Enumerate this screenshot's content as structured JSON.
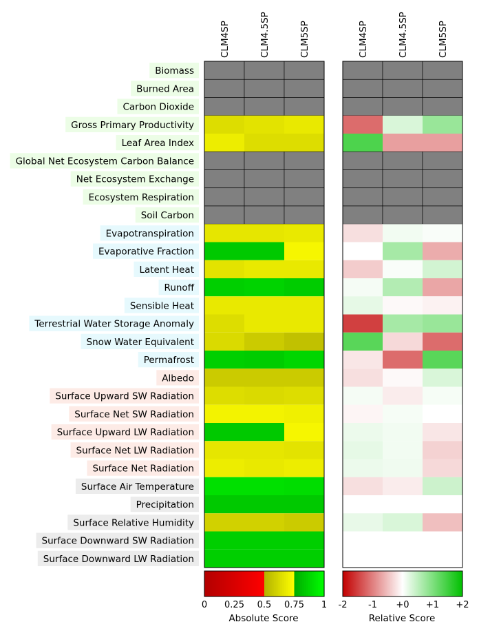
{
  "chart_data": {
    "type": "heatmap",
    "columns": [
      "CLM4SP",
      "CLM4.5SP",
      "CLM5SP"
    ],
    "rows": [
      {
        "label": "Biomass",
        "group": "ecosystem"
      },
      {
        "label": "Burned Area",
        "group": "ecosystem"
      },
      {
        "label": "Carbon Dioxide",
        "group": "ecosystem"
      },
      {
        "label": "Gross Primary Productivity",
        "group": "ecosystem"
      },
      {
        "label": "Leaf Area Index",
        "group": "ecosystem"
      },
      {
        "label": "Global Net Ecosystem Carbon Balance",
        "group": "ecosystem"
      },
      {
        "label": "Net Ecosystem Exchange",
        "group": "ecosystem"
      },
      {
        "label": "Ecosystem Respiration",
        "group": "ecosystem"
      },
      {
        "label": "Soil Carbon",
        "group": "ecosystem"
      },
      {
        "label": "Evapotranspiration",
        "group": "hydrology"
      },
      {
        "label": "Evaporative Fraction",
        "group": "hydrology"
      },
      {
        "label": "Latent Heat",
        "group": "hydrology"
      },
      {
        "label": "Runoff",
        "group": "hydrology"
      },
      {
        "label": "Sensible Heat",
        "group": "hydrology"
      },
      {
        "label": "Terrestrial Water Storage Anomaly",
        "group": "hydrology"
      },
      {
        "label": "Snow Water Equivalent",
        "group": "hydrology"
      },
      {
        "label": "Permafrost",
        "group": "hydrology"
      },
      {
        "label": "Albedo",
        "group": "radiation"
      },
      {
        "label": "Surface Upward SW Radiation",
        "group": "radiation"
      },
      {
        "label": "Surface Net SW Radiation",
        "group": "radiation"
      },
      {
        "label": "Surface Upward LW Radiation",
        "group": "radiation"
      },
      {
        "label": "Surface Net LW Radiation",
        "group": "radiation"
      },
      {
        "label": "Surface Net Radiation",
        "group": "radiation"
      },
      {
        "label": "Surface Air Temperature",
        "group": "forcing"
      },
      {
        "label": "Precipitation",
        "group": "forcing"
      },
      {
        "label": "Surface Relative Humidity",
        "group": "forcing"
      },
      {
        "label": "Surface Downward SW Radiation",
        "group": "forcing"
      },
      {
        "label": "Surface Downward LW Radiation",
        "group": "forcing"
      }
    ],
    "group_colors": {
      "ecosystem": "#ecfde6",
      "hydrology": "#e6f9fd",
      "radiation": "#fdebe6",
      "forcing": "#ececec"
    },
    "missing_color": "#808080",
    "absolute_scores": [
      [
        null,
        null,
        null
      ],
      [
        null,
        null,
        null
      ],
      [
        null,
        null,
        null
      ],
      [
        0.64,
        0.66,
        0.68
      ],
      [
        0.69,
        0.64,
        0.64
      ],
      [
        null,
        null,
        null
      ],
      [
        null,
        null,
        null
      ],
      [
        null,
        null,
        null
      ],
      [
        null,
        null,
        null
      ],
      [
        0.67,
        0.67,
        0.68
      ],
      [
        0.84,
        0.84,
        0.72
      ],
      [
        0.66,
        0.68,
        0.68
      ],
      [
        0.86,
        0.87,
        0.85
      ],
      [
        0.68,
        0.68,
        0.68
      ],
      [
        0.64,
        0.68,
        0.68
      ],
      [
        0.63,
        0.58,
        0.55
      ],
      [
        0.86,
        0.85,
        0.88
      ],
      [
        0.58,
        0.58,
        0.58
      ],
      [
        0.64,
        0.63,
        0.64
      ],
      [
        0.71,
        0.71,
        0.7
      ],
      [
        0.84,
        0.84,
        0.72
      ],
      [
        0.67,
        0.67,
        0.66
      ],
      [
        0.69,
        0.68,
        0.69
      ],
      [
        0.91,
        0.91,
        0.9
      ],
      [
        0.84,
        0.84,
        0.84
      ],
      [
        0.6,
        0.6,
        0.58
      ],
      [
        0.86,
        0.86,
        0.86
      ],
      [
        0.86,
        0.86,
        0.86
      ]
    ],
    "relative_scores": [
      [
        null,
        null,
        null
      ],
      [
        null,
        null,
        null
      ],
      [
        null,
        null,
        null
      ],
      [
        -1.15,
        0.3,
        0.8
      ],
      [
        1.4,
        -0.75,
        -0.75
      ],
      [
        null,
        null,
        null
      ],
      [
        null,
        null,
        null
      ],
      [
        null,
        null,
        null
      ],
      [
        null,
        null,
        null
      ],
      [
        -0.25,
        0.1,
        0.05
      ],
      [
        0.0,
        0.7,
        -0.65
      ],
      [
        -0.4,
        0.05,
        0.35
      ],
      [
        0.08,
        0.6,
        -0.7
      ],
      [
        0.2,
        -0.05,
        -0.1
      ],
      [
        -1.5,
        0.7,
        0.8
      ],
      [
        1.3,
        -0.3,
        -1.15
      ],
      [
        -0.2,
        -1.15,
        1.3
      ],
      [
        -0.25,
        -0.05,
        0.3
      ],
      [
        0.08,
        -0.15,
        0.07
      ],
      [
        -0.08,
        0.07,
        0.0
      ],
      [
        0.15,
        0.1,
        -0.2
      ],
      [
        0.2,
        0.1,
        -0.35
      ],
      [
        0.15,
        0.12,
        -0.3
      ],
      [
        -0.25,
        -0.15,
        0.4
      ],
      [
        0.0,
        0.0,
        0.0
      ],
      [
        0.18,
        0.3,
        -0.5
      ],
      [
        null,
        null,
        null
      ],
      [
        null,
        null,
        null
      ]
    ],
    "absolute_colorbar": {
      "title": "Absolute Score",
      "tick_labels": [
        "0",
        "0.25",
        "0.5",
        "0.75",
        "1"
      ],
      "tick_values": [
        0,
        0.25,
        0.5,
        0.75,
        1
      ],
      "range": [
        0,
        1
      ]
    },
    "relative_colorbar": {
      "title": "Relative Score",
      "tick_labels": [
        "-2",
        "-1",
        "+0",
        "+1",
        "+2"
      ],
      "tick_values": [
        -2,
        -1,
        0,
        1,
        2
      ],
      "range": [
        -2,
        2
      ]
    }
  }
}
